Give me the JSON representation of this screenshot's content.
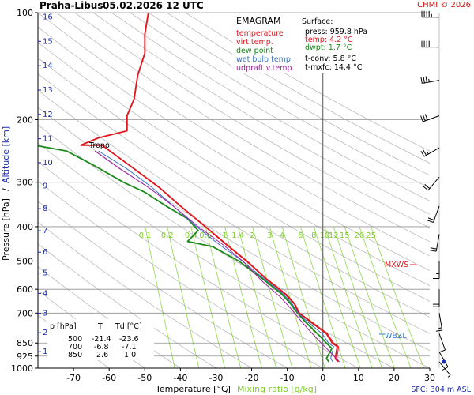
{
  "header": {
    "station": "Praha-Libus",
    "datetime": "05.02.2026 12 UTC",
    "copyright": "CHMI © 2026"
  },
  "colors": {
    "temperature": "#e0181f",
    "virt_temp": "#e0181f",
    "dew_point": "#1b8a1b",
    "wet_bulb": "#3a73c4",
    "updraft": "#a020a0",
    "grid": "#909090",
    "dry_adiabat": "#bbbbbb",
    "mixing_ratio": "#8fd84a",
    "altitude_label": "#1a2bb0"
  },
  "legend": {
    "title": "EMAGRAM",
    "items": [
      {
        "label": "temperature",
        "color": "#e0181f"
      },
      {
        "label": "virt.temp.",
        "color": "#e0181f"
      },
      {
        "label": "dew point",
        "color": "#1b8a1b"
      },
      {
        "label": "wet bulb temp.",
        "color": "#3a73c4"
      },
      {
        "label": "udpraft v.temp.",
        "color": "#a020a0"
      }
    ]
  },
  "surface": {
    "title": "Surface:",
    "press": "press: 959.8 hPa",
    "temp": "temp: 4.2 °C",
    "dwpt": "dwpt: 1.7 °C",
    "tconv": "t-conv: 5.8 °C",
    "tmxfc": "t-mxfc: 14.4 °C"
  },
  "table": {
    "headers": [
      "p [hPa]",
      "T",
      "Td [°C]"
    ],
    "rows": [
      [
        "500",
        "-21.4",
        "-23.6"
      ],
      [
        "700",
        "-6.8",
        "-7.1"
      ],
      [
        "850",
        "2.6",
        "1.0"
      ]
    ]
  },
  "labels": {
    "tropo": "Tropo",
    "mxws": "MXWS",
    "wbzl": "WBZL",
    "sfc": "SFC: 304 m ASL",
    "ylabel_pressure": "Pressure [hPa]",
    "ylabel_sep": "/",
    "ylabel_altitude": "Altitude [km]",
    "xlabel_temp": "Temperature [°C]",
    "xlabel_sep": "/",
    "xlabel_mr": "Mixing ratio [g/kg]"
  },
  "chart_data": {
    "type": "line",
    "x_axis": {
      "range": [
        -80,
        30
      ],
      "ticks": [
        -70,
        -60,
        -50,
        -40,
        -30,
        -20,
        -10,
        0,
        10,
        20,
        30
      ]
    },
    "y_axis": {
      "scale": "log",
      "range": [
        1000,
        100
      ],
      "ticks": [
        100,
        200,
        300,
        400,
        500,
        600,
        700,
        850,
        925,
        1000
      ]
    },
    "altitude_ticks_km": [
      1,
      2,
      3,
      4,
      5,
      6,
      7,
      8,
      9,
      10,
      11,
      12,
      13,
      14,
      15,
      16
    ],
    "mixing_ratio_labels": [
      "0.1",
      "0.2",
      "0.4",
      "0.6",
      "1",
      "1.4",
      "2",
      "3",
      "4",
      "6",
      "8",
      "10",
      "12",
      "15",
      "20",
      "25"
    ],
    "series": [
      {
        "name": "temperature",
        "points": [
          [
            4.2,
            960
          ],
          [
            3.5,
            940
          ],
          [
            4,
            870
          ],
          [
            2.6,
            850
          ],
          [
            1,
            800
          ],
          [
            -3.5,
            740
          ],
          [
            -6.8,
            700
          ],
          [
            -8,
            660
          ],
          [
            -10.5,
            620
          ],
          [
            -16,
            560
          ],
          [
            -21.4,
            500
          ],
          [
            -27,
            450
          ],
          [
            -33,
            400
          ],
          [
            -40,
            350
          ],
          [
            -46,
            310
          ],
          [
            -53,
            275
          ],
          [
            -62,
            236
          ],
          [
            -68,
            236
          ],
          [
            -63,
            225
          ],
          [
            -55,
            215
          ],
          [
            -55,
            195
          ],
          [
            -53,
            175
          ],
          [
            -52,
            150
          ],
          [
            -50,
            130
          ],
          [
            -50,
            115
          ],
          [
            -49,
            100
          ]
        ]
      },
      {
        "name": "virt.temp.",
        "points": [
          [
            4.6,
            960
          ],
          [
            3.9,
            940
          ],
          [
            4.4,
            870
          ],
          [
            3,
            850
          ],
          [
            1.3,
            800
          ],
          [
            -3.2,
            740
          ],
          [
            -6.5,
            700
          ],
          [
            -7.8,
            660
          ],
          [
            -10.2,
            620
          ],
          [
            -15.8,
            560
          ],
          [
            -21.2,
            500
          ],
          [
            -26.8,
            450
          ],
          [
            -32.9,
            400
          ],
          [
            -39.9,
            350
          ],
          [
            -45.9,
            310
          ],
          [
            -52.9,
            275
          ],
          [
            -61.9,
            236
          ],
          [
            -67.9,
            236
          ],
          [
            -62.9,
            225
          ],
          [
            -54.9,
            215
          ],
          [
            -54.9,
            195
          ],
          [
            -52.9,
            175
          ],
          [
            -51.9,
            150
          ],
          [
            -49.9,
            130
          ],
          [
            -49.9,
            115
          ],
          [
            -48.9,
            100
          ]
        ]
      },
      {
        "name": "dew point",
        "points": [
          [
            1.7,
            960
          ],
          [
            1,
            940
          ],
          [
            2.5,
            880
          ],
          [
            1,
            850
          ],
          [
            -1,
            810
          ],
          [
            -5,
            740
          ],
          [
            -7.1,
            700
          ],
          [
            -9,
            660
          ],
          [
            -11.5,
            620
          ],
          [
            -17,
            560
          ],
          [
            -23.6,
            500
          ],
          [
            -31,
            455
          ],
          [
            -38,
            440
          ],
          [
            -35,
            410
          ],
          [
            -38,
            380
          ],
          [
            -44,
            350
          ],
          [
            -50,
            320
          ],
          [
            -56,
            300
          ],
          [
            -64,
            270
          ],
          [
            -72,
            245
          ],
          [
            -80,
            237
          ]
        ]
      },
      {
        "name": "wet bulb temp.",
        "points": [
          [
            2.8,
            960
          ],
          [
            2.2,
            940
          ],
          [
            3,
            870
          ],
          [
            1.6,
            850
          ],
          [
            -0.2,
            800
          ],
          [
            -4.4,
            740
          ],
          [
            -7,
            700
          ],
          [
            -8.6,
            660
          ],
          [
            -11,
            620
          ],
          [
            -16.6,
            560
          ],
          [
            -22.6,
            500
          ],
          [
            -29,
            450
          ],
          [
            -35.5,
            400
          ],
          [
            -42,
            350
          ],
          [
            -48,
            310
          ],
          [
            -55,
            275
          ],
          [
            -63,
            245
          ]
        ]
      },
      {
        "name": "udpraft v.temp.",
        "points": [
          [
            4.6,
            960
          ],
          [
            2,
            900
          ],
          [
            -0.5,
            850
          ],
          [
            -4,
            780
          ],
          [
            -7,
            720
          ],
          [
            -9,
            680
          ],
          [
            -12,
            630
          ],
          [
            -17,
            570
          ],
          [
            -22.5,
            500
          ],
          [
            -28,
            450
          ],
          [
            -35,
            400
          ],
          [
            -42,
            350
          ],
          [
            -49,
            310
          ],
          [
            -57,
            275
          ],
          [
            -64,
            245
          ]
        ]
      }
    ],
    "wind_profile": [
      {
        "p": 103,
        "dir": 270,
        "kt": 45
      },
      {
        "p": 125,
        "dir": 270,
        "kt": 40
      },
      {
        "p": 155,
        "dir": 260,
        "kt": 35
      },
      {
        "p": 195,
        "dir": 250,
        "kt": 30
      },
      {
        "p": 240,
        "dir": 240,
        "kt": 25
      },
      {
        "p": 290,
        "dir": 220,
        "kt": 20
      },
      {
        "p": 350,
        "dir": 200,
        "kt": 20
      },
      {
        "p": 420,
        "dir": 190,
        "kt": 20
      },
      {
        "p": 500,
        "dir": 180,
        "kt": 25
      },
      {
        "p": 600,
        "dir": 180,
        "kt": 20
      },
      {
        "p": 700,
        "dir": 170,
        "kt": 15
      },
      {
        "p": 800,
        "dir": 160,
        "kt": 10
      },
      {
        "p": 900,
        "dir": 150,
        "kt": 10
      },
      {
        "p": 960,
        "dir": 140,
        "kt": 5
      }
    ]
  }
}
